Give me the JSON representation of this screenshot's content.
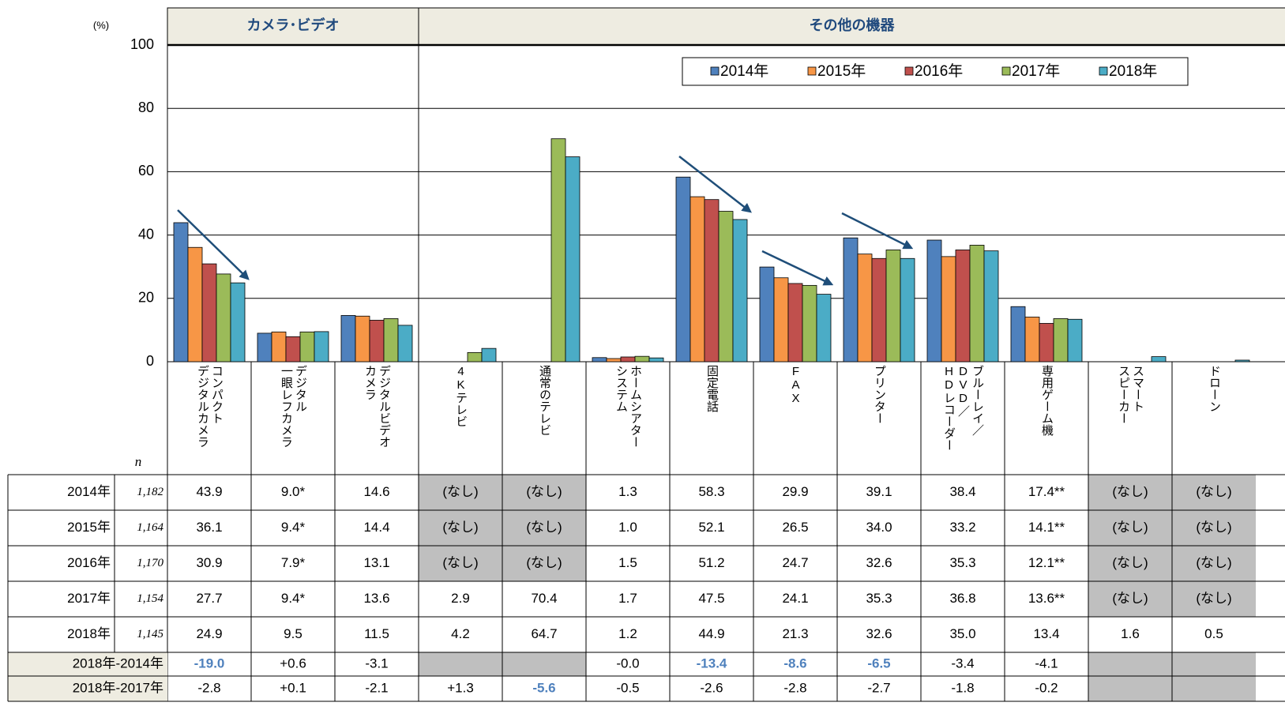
{
  "chart_data": {
    "type": "bar",
    "y_unit": "(%)",
    "n_label": "n",
    "groups": [
      {
        "name": "カメラ･ビデオ",
        "count": 3
      },
      {
        "name": "その他の機器",
        "count": 10
      }
    ],
    "categories": [
      "コンパクト\nデジタルカメラ",
      "デジタル\n一眼レフカメラ",
      "デジタルビデオ\nカメラ",
      "4Kテレビ",
      "通常のテレビ",
      "ホームシアター\nシステム",
      "固定電話",
      "FAX",
      "プリンター",
      "ブルーレイ／\nDVD／\nHDレコーダー",
      "専用ゲーム機",
      "スマート\nスピーカー",
      "ドローン"
    ],
    "series": [
      {
        "name": "2014年",
        "n": "1,182",
        "color": "#4f81bd",
        "values": [
          43.9,
          9.0,
          14.6,
          null,
          null,
          1.3,
          58.3,
          29.9,
          39.1,
          38.4,
          17.4,
          null,
          null
        ],
        "value_labels": [
          "43.9",
          "9.0*",
          "14.6",
          "(なし)",
          "(なし)",
          "1.3",
          "58.3",
          "29.9",
          "39.1",
          "38.4",
          "17.4**",
          "(なし)",
          "(なし)"
        ]
      },
      {
        "name": "2015年",
        "n": "1,164",
        "color": "#f79646",
        "values": [
          36.1,
          9.4,
          14.4,
          null,
          null,
          1.0,
          52.1,
          26.5,
          34.0,
          33.2,
          14.1,
          null,
          null
        ],
        "value_labels": [
          "36.1",
          "9.4*",
          "14.4",
          "(なし)",
          "(なし)",
          "1.0",
          "52.1",
          "26.5",
          "34.0",
          "33.2",
          "14.1**",
          "(なし)",
          "(なし)"
        ]
      },
      {
        "name": "2016年",
        "n": "1,170",
        "color": "#c0504d",
        "values": [
          30.9,
          7.9,
          13.1,
          null,
          null,
          1.5,
          51.2,
          24.7,
          32.6,
          35.3,
          12.1,
          null,
          null
        ],
        "value_labels": [
          "30.9",
          "7.9*",
          "13.1",
          "(なし)",
          "(なし)",
          "1.5",
          "51.2",
          "24.7",
          "32.6",
          "35.3",
          "12.1**",
          "(なし)",
          "(なし)"
        ]
      },
      {
        "name": "2017年",
        "n": "1,154",
        "color": "#9bbb59",
        "values": [
          27.7,
          9.4,
          13.6,
          2.9,
          70.4,
          1.7,
          47.5,
          24.1,
          35.3,
          36.8,
          13.6,
          null,
          null
        ],
        "value_labels": [
          "27.7",
          "9.4*",
          "13.6",
          "2.9",
          "70.4",
          "1.7",
          "47.5",
          "24.1",
          "35.3",
          "36.8",
          "13.6**",
          "(なし)",
          "(なし)"
        ]
      },
      {
        "name": "2018年",
        "n": "1,145",
        "color": "#4bacc6",
        "values": [
          24.9,
          9.5,
          11.5,
          4.2,
          64.7,
          1.2,
          44.9,
          21.3,
          32.6,
          35.0,
          13.4,
          1.6,
          0.5
        ],
        "value_labels": [
          "24.9",
          "9.5",
          "11.5",
          "4.2",
          "64.7",
          "1.2",
          "44.9",
          "21.3",
          "32.6",
          "35.0",
          "13.4",
          "1.6",
          "0.5"
        ]
      }
    ],
    "diff_rows": [
      {
        "label": "2018年-2014年",
        "values": [
          "-19.0",
          "+0.6",
          "-3.1",
          null,
          null,
          "-0.0",
          "-13.4",
          "-8.6",
          "-6.5",
          "-3.4",
          "-4.1",
          null,
          null
        ],
        "highlight": [
          0,
          6,
          7,
          8
        ]
      },
      {
        "label": "2018年-2017年",
        "values": [
          "-2.8",
          "+0.1",
          "-2.1",
          "+1.3",
          "-5.6",
          "-0.5",
          "-2.6",
          "-2.8",
          "-2.7",
          "-1.8",
          "-0.2",
          null,
          null
        ],
        "highlight": [
          4
        ]
      }
    ],
    "highlight_color": "#4f81bd",
    "ylim": [
      0,
      100
    ],
    "yticks": [
      0,
      20,
      40,
      60,
      80,
      100
    ],
    "grid": true,
    "legend": "upper right"
  }
}
